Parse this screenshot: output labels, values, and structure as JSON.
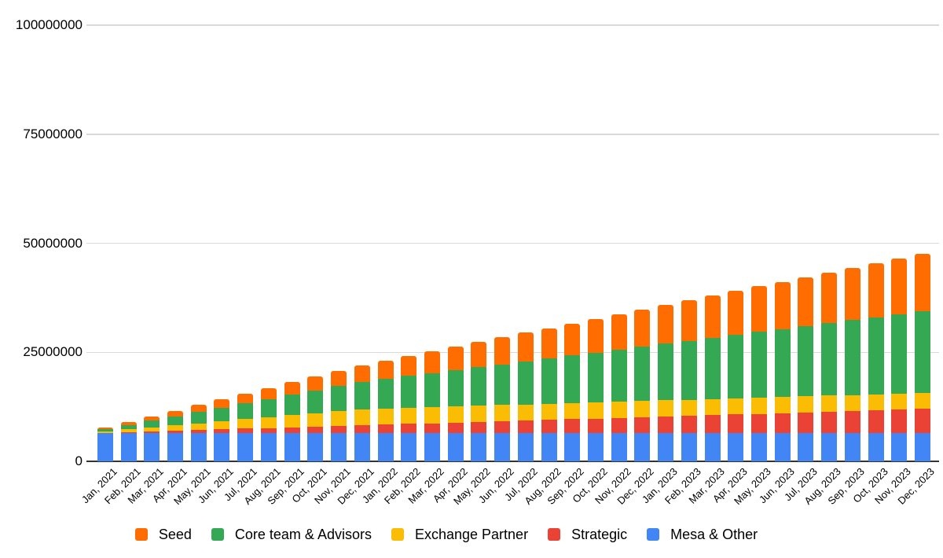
{
  "chart_data": {
    "type": "bar",
    "stacked": true,
    "title": "",
    "xlabel": "",
    "ylabel": "",
    "categories": [
      "Jan, 2021",
      "Feb, 2021",
      "Mar, 2021",
      "Apr, 2021",
      "May, 2021",
      "Jun, 2021",
      "Jul, 2021",
      "Aug, 2021",
      "Sep, 2021",
      "Oct, 2021",
      "Nov, 2021",
      "Dec, 2021",
      "Jan, 2022",
      "Feb, 2022",
      "Mar, 2022",
      "Apr, 2022",
      "May, 2022",
      "Jun, 2022",
      "Jul, 2022",
      "Aug, 2022",
      "Sep, 2022",
      "Oct, 2022",
      "Nov, 2022",
      "Dec, 2022",
      "Jan, 2023",
      "Feb, 2023",
      "Mar, 2023",
      "Apr, 2023",
      "May, 2023",
      "Jun, 2023",
      "Jul, 2023",
      "Aug, 2023",
      "Sep, 2023",
      "Oct, 2023",
      "Nov, 2023",
      "Dec, 2023"
    ],
    "series": [
      {
        "name": "Seed",
        "color": "#FF6D01",
        "values": [
          320000,
          640000,
          960000,
          1280000,
          1600000,
          1920000,
          2240000,
          2560000,
          2880000,
          3200000,
          3520000,
          3840000,
          4230000,
          4620000,
          5000000,
          5390000,
          5780000,
          6170000,
          6550000,
          6940000,
          7330000,
          7720000,
          8100000,
          8490000,
          8880000,
          9270000,
          9650000,
          10040000,
          10430000,
          10820000,
          11200000,
          11590000,
          11980000,
          12370000,
          12750000,
          13140000
        ]
      },
      {
        "name": "Core team & Advisors",
        "color": "#34A853",
        "values": [
          520000,
          1040000,
          1560000,
          2080000,
          2600000,
          3120000,
          3640000,
          4160000,
          4680000,
          5200000,
          5720000,
          6240000,
          6760000,
          7280000,
          7800000,
          8320000,
          8840000,
          9360000,
          9880000,
          10400000,
          10920000,
          11440000,
          11960000,
          12480000,
          13000000,
          13520000,
          14040000,
          14560000,
          15080000,
          15600000,
          16120000,
          16640000,
          17160000,
          17680000,
          18200000,
          18720000
        ]
      },
      {
        "name": "Exchange Partner",
        "color": "#FBBC04",
        "values": [
          310000,
          620000,
          930000,
          1240000,
          1550000,
          1860000,
          2170000,
          2480000,
          2790000,
          3100000,
          3410000,
          3700000,
          3700000,
          3700000,
          3700000,
          3700000,
          3700000,
          3700000,
          3700000,
          3700000,
          3700000,
          3700000,
          3700000,
          3700000,
          3700000,
          3700000,
          3700000,
          3700000,
          3700000,
          3700000,
          3700000,
          3700000,
          3700000,
          3700000,
          3700000,
          3700000
        ]
      },
      {
        "name": "Strategic",
        "color": "#EA4335",
        "values": [
          155000,
          310000,
          465000,
          620000,
          775000,
          930000,
          1085000,
          1240000,
          1395000,
          1550000,
          1705000,
          1860000,
          2015000,
          2170000,
          2325000,
          2480000,
          2635000,
          2790000,
          2945000,
          3100000,
          3255000,
          3410000,
          3565000,
          3720000,
          3875000,
          4030000,
          4185000,
          4340000,
          4495000,
          4650000,
          4805000,
          4960000,
          5115000,
          5270000,
          5425000,
          5580000
        ]
      },
      {
        "name": "Mesa & Other",
        "color": "#4285F4",
        "values": [
          6400000,
          6400000,
          6400000,
          6400000,
          6400000,
          6400000,
          6400000,
          6400000,
          6400000,
          6400000,
          6400000,
          6400000,
          6400000,
          6400000,
          6400000,
          6400000,
          6400000,
          6400000,
          6400000,
          6400000,
          6400000,
          6400000,
          6400000,
          6400000,
          6400000,
          6400000,
          6400000,
          6400000,
          6400000,
          6400000,
          6400000,
          6400000,
          6400000,
          6400000,
          6400000,
          6400000
        ]
      }
    ],
    "stack_order_bottom_to_top": [
      "Mesa & Other",
      "Strategic",
      "Exchange Partner",
      "Core team & Advisors",
      "Seed"
    ],
    "y_axis": {
      "min": 0,
      "max": 100000000,
      "ticks": [
        0,
        25000000,
        50000000,
        75000000,
        100000000
      ],
      "tick_labels": [
        "0",
        "25000000",
        "50000000",
        "75000000",
        "100000000"
      ]
    },
    "legend": {
      "position": "bottom",
      "items": [
        "Seed",
        "Core team & Advisors",
        "Exchange Partner",
        "Strategic",
        "Mesa & Other"
      ]
    },
    "grid": true
  }
}
